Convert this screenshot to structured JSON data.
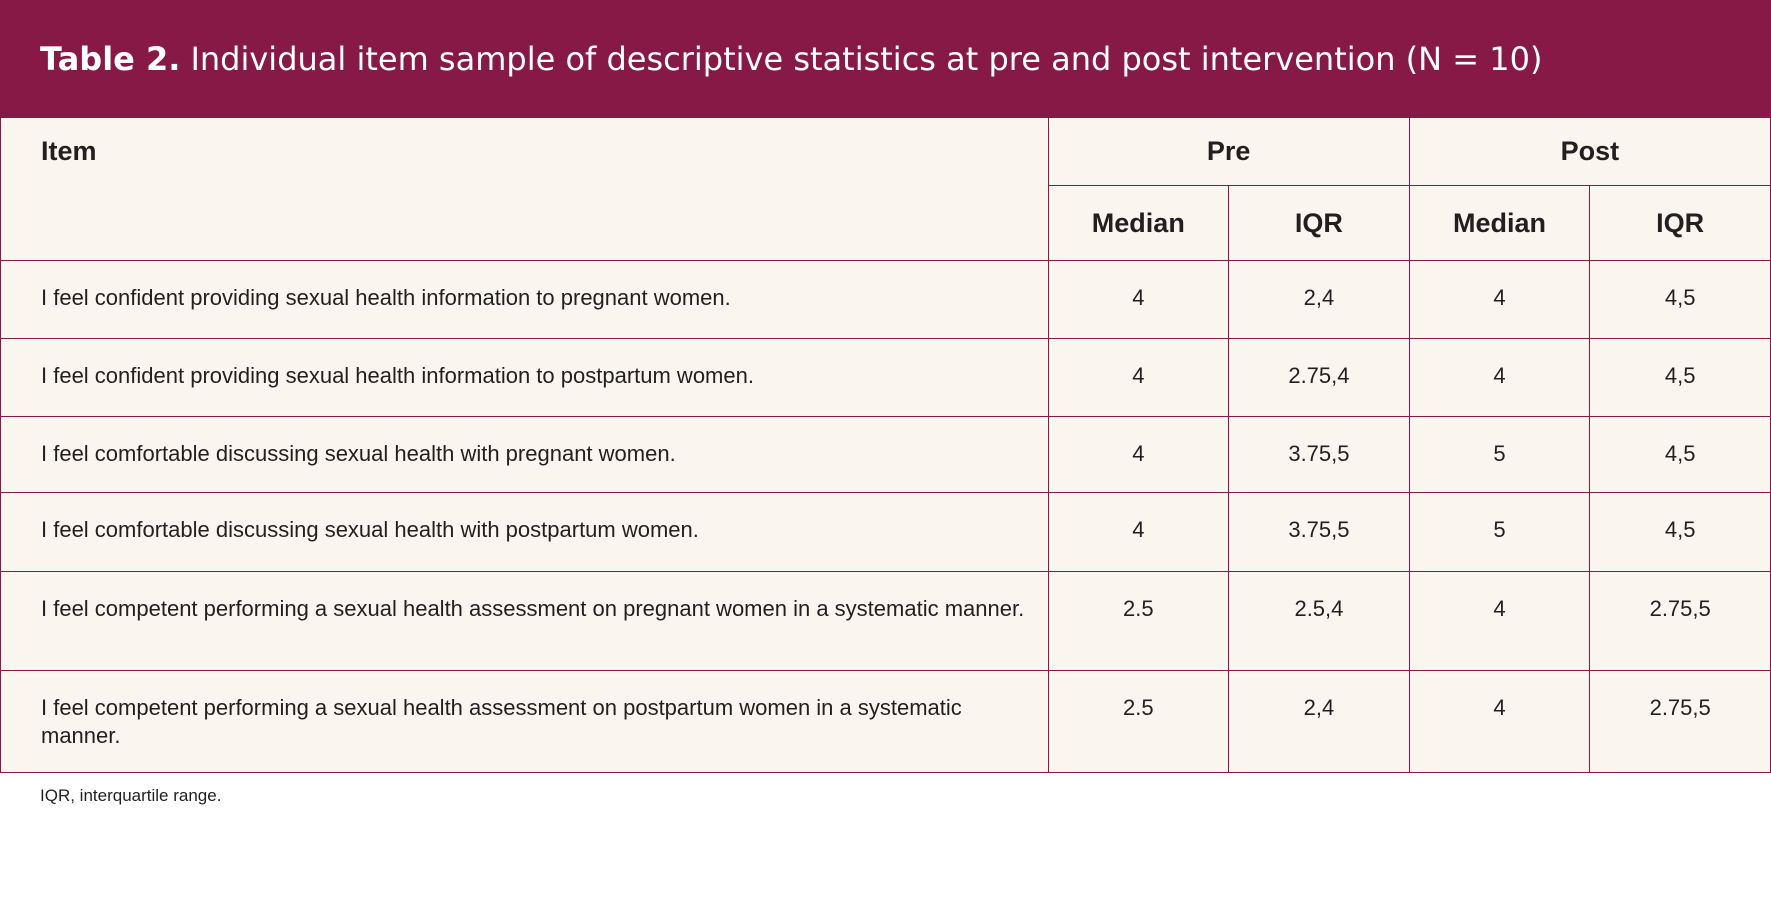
{
  "title": {
    "label": "Table 2.",
    "text": "Individual item sample of descriptive statistics at pre and post intervention (N = 10)"
  },
  "table": {
    "item_header": "Item",
    "groups": [
      "Pre",
      "Post"
    ],
    "subheaders": [
      "Median",
      "IQR",
      "Median",
      "IQR"
    ],
    "rows": [
      {
        "item": "I feel confident providing sexual health information to pregnant women.",
        "pre_median": "4",
        "pre_iqr": "2,4",
        "post_median": "4",
        "post_iqr": "4,5"
      },
      {
        "item": "I feel confident providing sexual health information to postpartum women.",
        "pre_median": "4",
        "pre_iqr": "2.75,4",
        "post_median": "4",
        "post_iqr": "4,5"
      },
      {
        "item": "I feel comfortable discussing sexual health with pregnant women.",
        "pre_median": "4",
        "pre_iqr": "3.75,5",
        "post_median": "5",
        "post_iqr": "4,5"
      },
      {
        "item": "I feel comfortable discussing sexual health with postpartum women.",
        "pre_median": "4",
        "pre_iqr": "3.75,5",
        "post_median": "5",
        "post_iqr": "4,5"
      },
      {
        "item": "I feel competent performing a sexual health assessment on pregnant women in a systematic manner.",
        "pre_median": "2.5",
        "pre_iqr": "2.5,4",
        "post_median": "4",
        "post_iqr": "2.75,5"
      },
      {
        "item": "I feel competent performing a sexual health assessment on postpartum women in a systematic manner.",
        "pre_median": "2.5",
        "pre_iqr": "2,4",
        "post_median": "4",
        "post_iqr": "2.75,5"
      }
    ]
  },
  "footnote": "IQR, interquartile range.",
  "colors": {
    "header_background": "#861946",
    "table_background": "#fbf5ef",
    "rule": "#861946"
  }
}
